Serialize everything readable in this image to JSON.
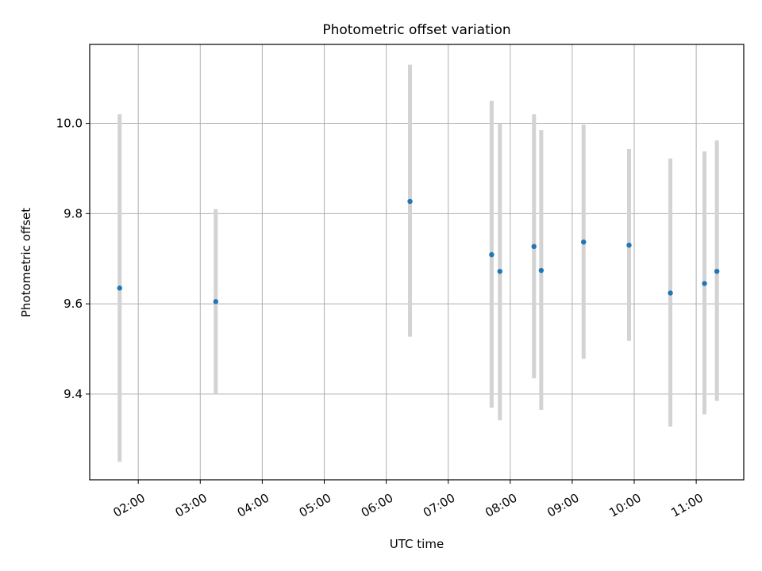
{
  "chart_data": {
    "type": "scatter",
    "title": "Photometric offset variation",
    "xlabel": "UTC time",
    "ylabel": "Photometric offset",
    "x_tick_labels": [
      "02:00",
      "03:00",
      "04:00",
      "05:00",
      "06:00",
      "07:00",
      "08:00",
      "09:00",
      "10:00",
      "11:00"
    ],
    "y_tick_labels": [
      "9.4",
      "9.6",
      "9.8",
      "10.0"
    ],
    "y_ticks": [
      9.4,
      9.6,
      9.8,
      10.0
    ],
    "xlim": [
      "01:13",
      "11:46"
    ],
    "ylim": [
      9.21,
      10.175
    ],
    "grid": true,
    "colors": {
      "point": "#1f77b4",
      "errorbar": "#d3d3d3",
      "grid": "#b0b0b0"
    },
    "points": [
      {
        "x": "01:42",
        "y": 9.635,
        "yerr_low": 9.25,
        "yerr_high": 10.02
      },
      {
        "x": "03:15",
        "y": 9.605,
        "yerr_low": 9.4,
        "yerr_high": 9.81
      },
      {
        "x": "06:23",
        "y": 9.827,
        "yerr_low": 9.527,
        "yerr_high": 10.13
      },
      {
        "x": "07:42",
        "y": 9.709,
        "yerr_low": 9.37,
        "yerr_high": 10.05
      },
      {
        "x": "07:50",
        "y": 9.672,
        "yerr_low": 9.342,
        "yerr_high": 10.0
      },
      {
        "x": "08:23",
        "y": 9.727,
        "yerr_low": 9.435,
        "yerr_high": 10.02
      },
      {
        "x": "08:30",
        "y": 9.674,
        "yerr_low": 9.365,
        "yerr_high": 9.985
      },
      {
        "x": "09:11",
        "y": 9.737,
        "yerr_low": 9.478,
        "yerr_high": 9.997
      },
      {
        "x": "09:55",
        "y": 9.73,
        "yerr_low": 9.518,
        "yerr_high": 9.943
      },
      {
        "x": "10:35",
        "y": 9.624,
        "yerr_low": 9.328,
        "yerr_high": 9.922
      },
      {
        "x": "11:08",
        "y": 9.645,
        "yerr_low": 9.355,
        "yerr_high": 9.938
      },
      {
        "x": "11:20",
        "y": 9.672,
        "yerr_low": 9.385,
        "yerr_high": 9.962
      }
    ]
  }
}
